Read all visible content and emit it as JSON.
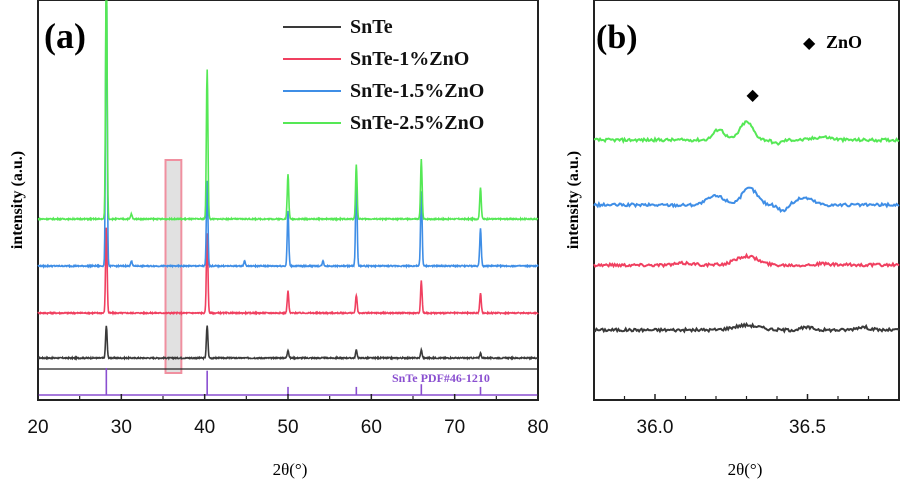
{
  "chart_data": [
    {
      "panel": "(a)",
      "type": "line",
      "xlabel": "2θ(°)",
      "ylabel": "intensity (a.u.)",
      "xlim": [
        20,
        80
      ],
      "xticks": [
        20,
        30,
        40,
        50,
        60,
        70,
        80
      ],
      "legend_position": "top-right",
      "reference_label": "SnTe PDF#46-1210",
      "reference_peaks": [
        {
          "x": 28.2,
          "rel": 1.0
        },
        {
          "x": 40.3,
          "rel": 0.9
        },
        {
          "x": 50.0,
          "rel": 0.3
        },
        {
          "x": 58.2,
          "rel": 0.3
        },
        {
          "x": 66.0,
          "rel": 0.4
        },
        {
          "x": 73.1,
          "rel": 0.3
        }
      ],
      "highlight_range": [
        35.3,
        37.2
      ],
      "series": [
        {
          "name": "SnTe",
          "color": "#3a3a3a",
          "peaks": [
            [
              28.2,
              0.32
            ],
            [
              40.3,
              0.32
            ],
            [
              50.0,
              0.08
            ],
            [
              58.2,
              0.08
            ],
            [
              66.0,
              0.08
            ],
            [
              73.1,
              0.05
            ]
          ]
        },
        {
          "name": "SnTe-1%ZnO",
          "color": "#f04060",
          "peaks": [
            [
              28.2,
              0.85
            ],
            [
              40.3,
              0.8
            ],
            [
              50.0,
              0.22
            ],
            [
              58.2,
              0.18
            ],
            [
              66.0,
              0.32
            ],
            [
              73.1,
              0.2
            ]
          ]
        },
        {
          "name": "SnTe-1.5%ZnO",
          "color": "#3f8ee6",
          "peaks": [
            [
              28.2,
              3.0
            ],
            [
              40.3,
              0.85
            ],
            [
              50.0,
              0.55
            ],
            [
              58.2,
              0.9
            ],
            [
              66.0,
              0.75
            ],
            [
              73.1,
              0.38
            ],
            [
              31.2,
              0.05
            ],
            [
              44.8,
              0.05
            ],
            [
              54.2,
              0.05
            ]
          ]
        },
        {
          "name": "SnTe-2.5%ZnO",
          "color": "#55e855",
          "peaks": [
            [
              28.2,
              2.6
            ],
            [
              40.3,
              1.5
            ],
            [
              50.0,
              0.45
            ],
            [
              58.2,
              0.55
            ],
            [
              66.0,
              0.6
            ],
            [
              73.1,
              0.32
            ],
            [
              31.2,
              0.05
            ]
          ]
        }
      ]
    },
    {
      "panel": "(b)",
      "type": "line",
      "xlabel": "2θ(°)",
      "ylabel": "intensity (a.u.)",
      "xlim": [
        35.8,
        36.8
      ],
      "xticks": [
        36.0,
        36.5
      ],
      "annotation": {
        "symbol": "◆",
        "label": "ZnO",
        "x": 36.32
      },
      "series": [
        {
          "name": "SnTe",
          "color": "#3a3a3a",
          "bumps": [
            [
              36.3,
              0.08,
              0.06
            ],
            [
              36.5,
              0.04,
              0.03
            ],
            [
              36.68,
              0.05,
              0.03
            ]
          ]
        },
        {
          "name": "SnTe-1%ZnO",
          "color": "#f04060",
          "bumps": [
            [
              36.3,
              0.15,
              0.05
            ],
            [
              36.1,
              0.03,
              0.04
            ],
            [
              36.55,
              0.02,
              0.03
            ]
          ]
        },
        {
          "name": "SnTe-1.5%ZnO",
          "color": "#3f8ee6",
          "bumps": [
            [
              36.2,
              0.15,
              0.04
            ],
            [
              36.31,
              0.28,
              0.035
            ],
            [
              36.49,
              0.12,
              0.04
            ],
            [
              36.42,
              -0.1,
              0.02
            ]
          ]
        },
        {
          "name": "SnTe-2.5%ZnO",
          "color": "#55e855",
          "bumps": [
            [
              36.21,
              0.18,
              0.025
            ],
            [
              36.3,
              0.3,
              0.03
            ],
            [
              36.4,
              -0.06,
              0.02
            ],
            [
              36.55,
              0.05,
              0.04
            ]
          ]
        }
      ]
    }
  ]
}
